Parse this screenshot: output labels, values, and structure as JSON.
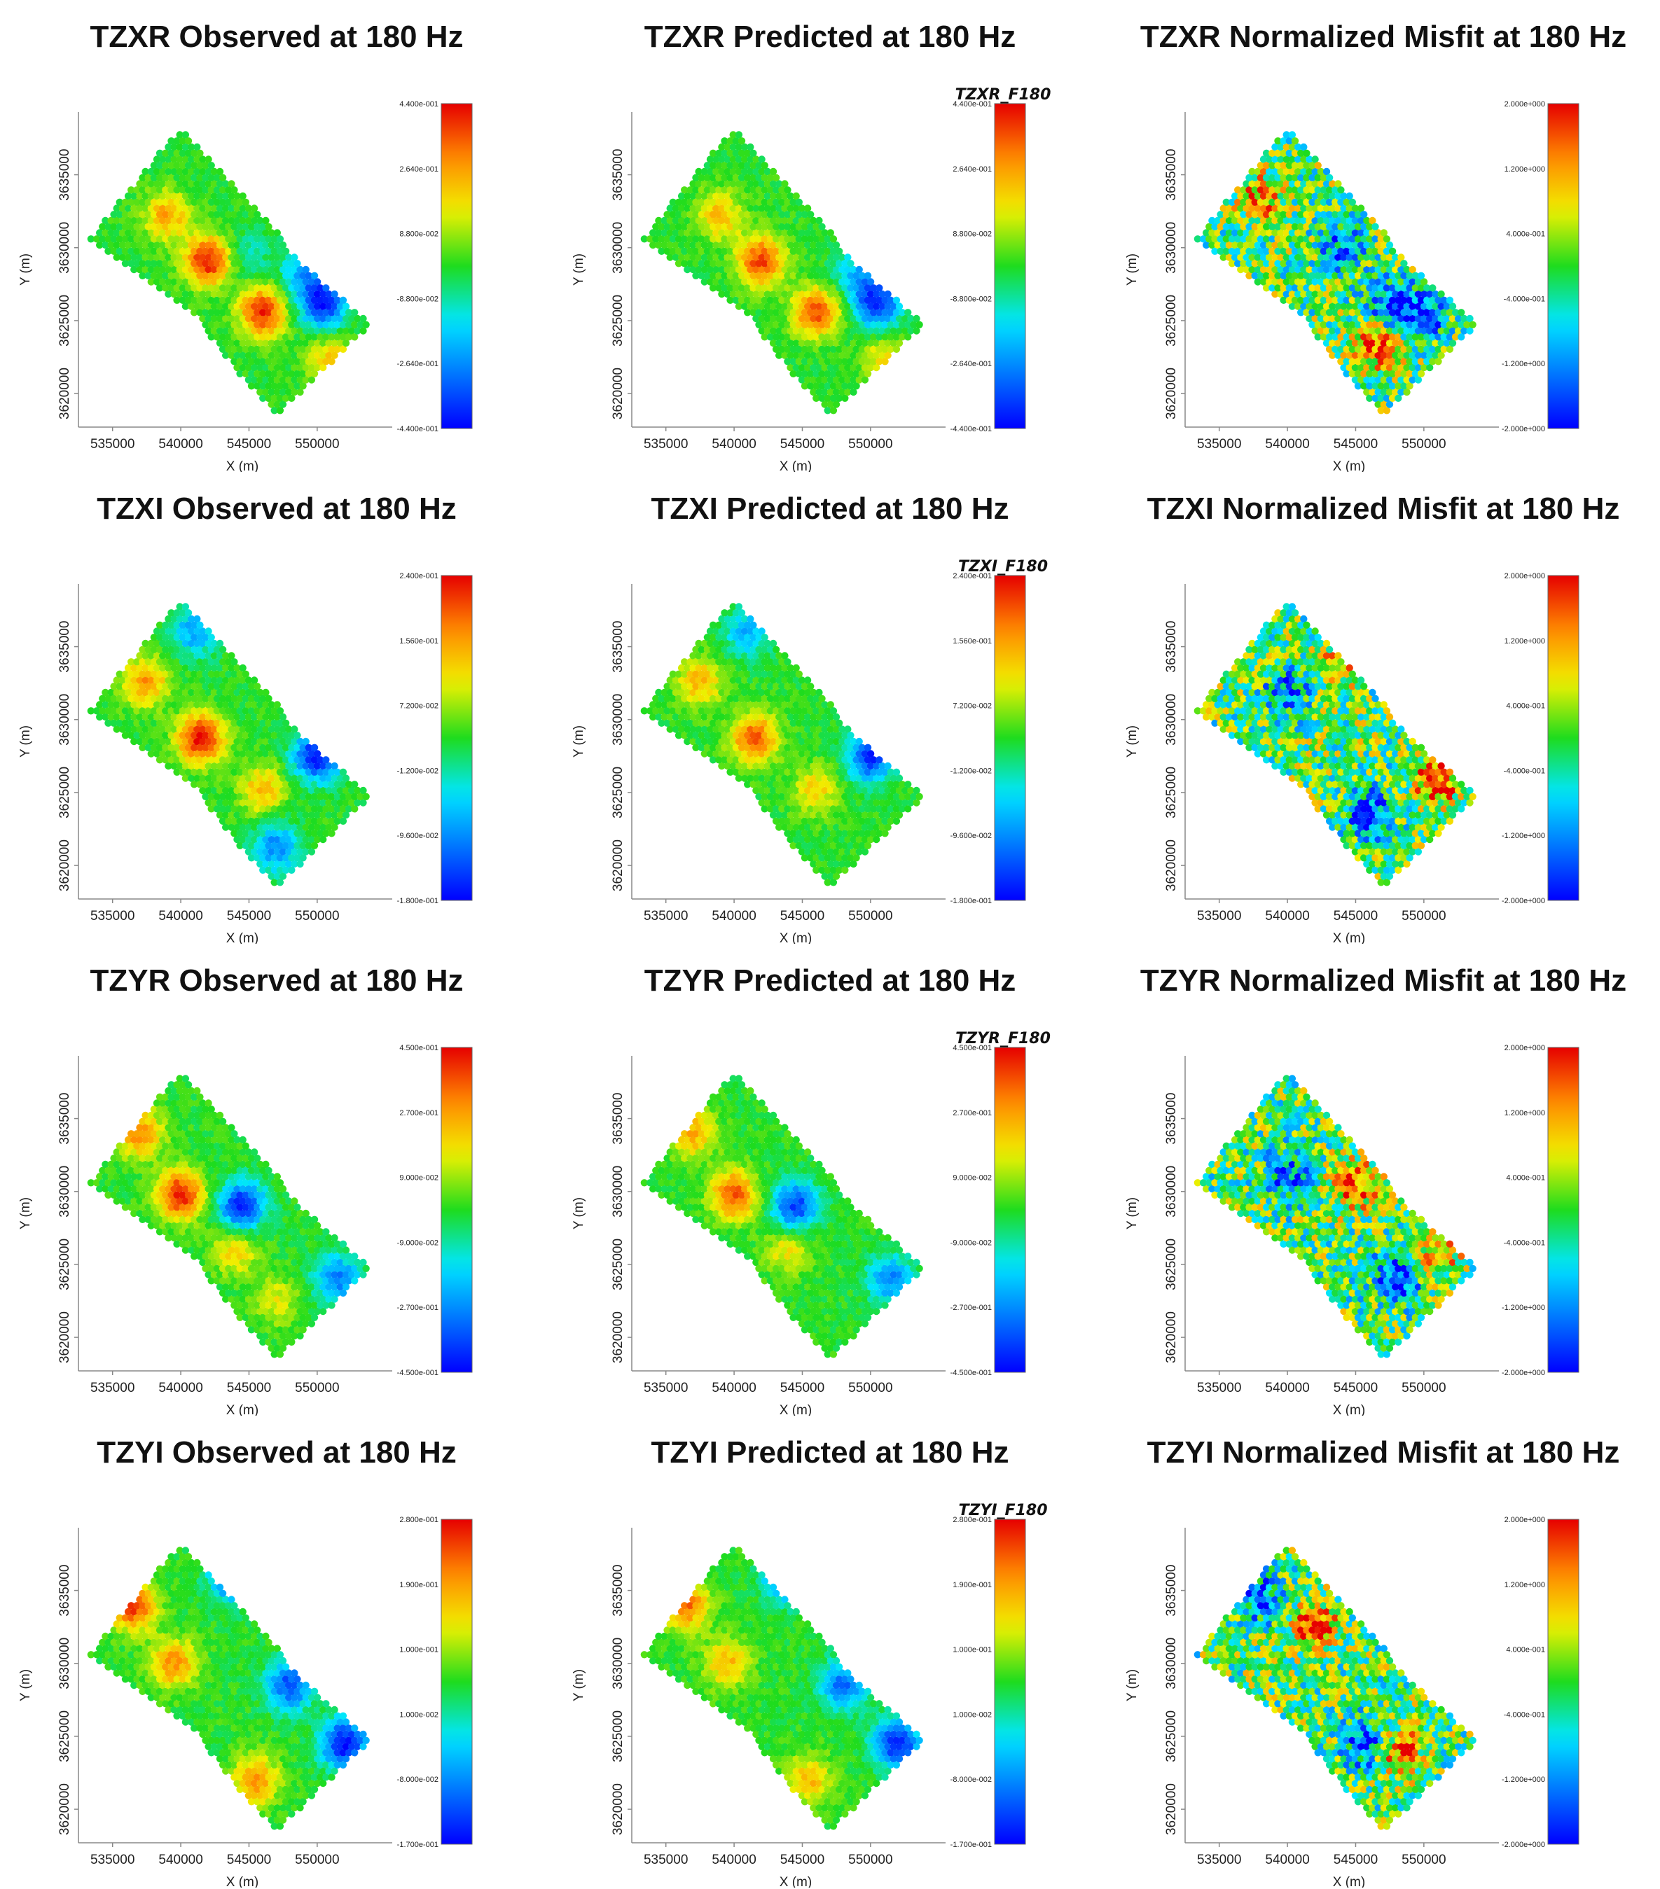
{
  "figure": {
    "columns": [
      "Observed",
      "Predicted",
      "Normalized Misfit"
    ],
    "rows": [
      "TZXR",
      "TZXI",
      "TZYR",
      "TZYI"
    ],
    "frequency": "180 Hz"
  },
  "chart_data": [
    {
      "type": "scatter",
      "component": "TZXR",
      "kind": "observed",
      "title": "TZXR Observed at 180 Hz",
      "xlabel": "X (m)",
      "ylabel": "Y (m)",
      "x_ticks": [
        "535000",
        "540000",
        "545000",
        "550000"
      ],
      "y_ticks": [
        "3620000",
        "3625000",
        "3630000",
        "3635000"
      ],
      "colorbar": {
        "ticks": [
          "4.400e-001",
          "2.640e-001",
          "8.800e-002",
          "-8.800e-002",
          "-2.640e-001",
          "-4.400e-001"
        ],
        "range": [
          -0.44,
          0.44
        ],
        "label": ""
      },
      "anomalies": [
        {
          "x": 539000,
          "y": 3632200,
          "value": 0.25
        },
        {
          "x": 542000,
          "y": 3629100,
          "value": 0.42
        },
        {
          "x": 546000,
          "y": 3625600,
          "value": 0.4
        },
        {
          "x": 550500,
          "y": 3626200,
          "value": -0.42
        },
        {
          "x": 549000,
          "y": 3628300,
          "value": -0.2
        },
        {
          "x": 551000,
          "y": 3622300,
          "value": 0.2
        },
        {
          "x": 545000,
          "y": 3629500,
          "value": -0.1
        }
      ]
    },
    {
      "type": "scatter",
      "component": "TZXR",
      "kind": "predicted",
      "title": "TZXR Predicted at 180 Hz",
      "xlabel": "X (m)",
      "ylabel": "Y (m)",
      "x_ticks": [
        "535000",
        "540000",
        "545000",
        "550000"
      ],
      "y_ticks": [
        "3620000",
        "3625000",
        "3630000",
        "3635000"
      ],
      "colorbar": {
        "ticks": [
          "4.400e-001",
          "2.640e-001",
          "8.800e-002",
          "-8.800e-002",
          "-2.640e-001",
          "-4.400e-001"
        ],
        "range": [
          -0.44,
          0.44
        ],
        "label": "TZXR_F180"
      },
      "anomalies": [
        {
          "x": 539000,
          "y": 3632200,
          "value": 0.22
        },
        {
          "x": 542000,
          "y": 3629100,
          "value": 0.38
        },
        {
          "x": 546000,
          "y": 3625600,
          "value": 0.36
        },
        {
          "x": 550500,
          "y": 3626200,
          "value": -0.4
        },
        {
          "x": 549000,
          "y": 3628300,
          "value": -0.18
        },
        {
          "x": 551000,
          "y": 3622300,
          "value": 0.18
        }
      ]
    },
    {
      "type": "scatter",
      "component": "TZXR",
      "kind": "misfit",
      "title": "TZXR Normalized Misfit at 180 Hz",
      "xlabel": "X (m)",
      "ylabel": "Y (m)",
      "x_ticks": [
        "535000",
        "540000",
        "545000",
        "550000"
      ],
      "y_ticks": [
        "3620000",
        "3625000",
        "3630000",
        "3635000"
      ],
      "colorbar": {
        "ticks": [
          "2.000e+000",
          "1.200e+000",
          "4.000e-001",
          "-4.000e-001",
          "-1.200e+000",
          "-2.000e+000"
        ],
        "range": [
          -2,
          2
        ],
        "label": ""
      },
      "anomalies": [
        {
          "x": 547500,
          "y": 3626000,
          "value": -1.8
        },
        {
          "x": 550000,
          "y": 3625500,
          "value": -1.6
        },
        {
          "x": 546500,
          "y": 3623500,
          "value": 1.7
        },
        {
          "x": 538000,
          "y": 3633500,
          "value": 1.2
        },
        {
          "x": 544000,
          "y": 3630000,
          "value": -1.2
        }
      ]
    },
    {
      "type": "scatter",
      "component": "TZXI",
      "kind": "observed",
      "title": "TZXI Observed at 180 Hz",
      "xlabel": "X (m)",
      "ylabel": "Y (m)",
      "x_ticks": [
        "535000",
        "540000",
        "545000",
        "550000"
      ],
      "y_ticks": [
        "3620000",
        "3625000",
        "3630000",
        "3635000"
      ],
      "colorbar": {
        "ticks": [
          "2.400e-001",
          "1.560e-001",
          "7.200e-002",
          "-1.200e-002",
          "-9.600e-002",
          "-1.800e-001"
        ],
        "range": [
          -0.18,
          0.24
        ],
        "label": ""
      },
      "anomalies": [
        {
          "x": 537500,
          "y": 3632600,
          "value": 0.16
        },
        {
          "x": 541500,
          "y": 3628700,
          "value": 0.24
        },
        {
          "x": 546000,
          "y": 3625200,
          "value": 0.14
        },
        {
          "x": 550000,
          "y": 3627500,
          "value": -0.18
        },
        {
          "x": 541000,
          "y": 3636000,
          "value": -0.08
        },
        {
          "x": 547000,
          "y": 3621200,
          "value": -0.1
        }
      ]
    },
    {
      "type": "scatter",
      "component": "TZXI",
      "kind": "predicted",
      "title": "TZXI Predicted at 180 Hz",
      "xlabel": "X (m)",
      "ylabel": "Y (m)",
      "x_ticks": [
        "535000",
        "540000",
        "545000",
        "550000"
      ],
      "y_ticks": [
        "3620000",
        "3625000",
        "3630000",
        "3635000"
      ],
      "colorbar": {
        "ticks": [
          "2.400e-001",
          "1.560e-001",
          "7.200e-002",
          "-1.200e-002",
          "-9.600e-002",
          "-1.800e-001"
        ],
        "range": [
          -0.18,
          0.24
        ],
        "label": "TZXI_F180"
      },
      "anomalies": [
        {
          "x": 537500,
          "y": 3632600,
          "value": 0.14
        },
        {
          "x": 541500,
          "y": 3628700,
          "value": 0.2
        },
        {
          "x": 546000,
          "y": 3625200,
          "value": 0.12
        },
        {
          "x": 550000,
          "y": 3627500,
          "value": -0.16
        },
        {
          "x": 541000,
          "y": 3636000,
          "value": -0.07
        }
      ]
    },
    {
      "type": "scatter",
      "component": "TZXI",
      "kind": "misfit",
      "title": "TZXI Normalized Misfit at 180 Hz",
      "xlabel": "X (m)",
      "ylabel": "Y (m)",
      "x_ticks": [
        "535000",
        "540000",
        "545000",
        "550000"
      ],
      "y_ticks": [
        "3620000",
        "3625000",
        "3630000",
        "3635000"
      ],
      "colorbar": {
        "ticks": [
          "2.000e+000",
          "1.200e+000",
          "4.000e-001",
          "-4.000e-001",
          "-1.200e+000",
          "-2.000e+000"
        ],
        "range": [
          -2,
          2
        ],
        "label": ""
      },
      "anomalies": [
        {
          "x": 546000,
          "y": 3623500,
          "value": -1.7
        },
        {
          "x": 551000,
          "y": 3625800,
          "value": 1.7
        },
        {
          "x": 540000,
          "y": 3632000,
          "value": -1.3
        },
        {
          "x": 544000,
          "y": 3634000,
          "value": 1.0
        }
      ]
    },
    {
      "type": "scatter",
      "component": "TZYR",
      "kind": "observed",
      "title": "TZYR Observed at 180 Hz",
      "xlabel": "X (m)",
      "ylabel": "Y (m)",
      "x_ticks": [
        "535000",
        "540000",
        "545000",
        "550000"
      ],
      "y_ticks": [
        "3620000",
        "3625000",
        "3630000",
        "3635000"
      ],
      "colorbar": {
        "ticks": [
          "4.500e-001",
          "2.700e-001",
          "9.000e-002",
          "-9.000e-002",
          "-2.700e-001",
          "-4.500e-001"
        ],
        "range": [
          -0.45,
          0.45
        ],
        "label": ""
      },
      "anomalies": [
        {
          "x": 540000,
          "y": 3629800,
          "value": 0.42
        },
        {
          "x": 537000,
          "y": 3634000,
          "value": 0.3
        },
        {
          "x": 544500,
          "y": 3629000,
          "value": -0.42
        },
        {
          "x": 544000,
          "y": 3626000,
          "value": 0.2
        },
        {
          "x": 551500,
          "y": 3624000,
          "value": -0.3
        },
        {
          "x": 547000,
          "y": 3622500,
          "value": 0.15
        }
      ]
    },
    {
      "type": "scatter",
      "component": "TZYR",
      "kind": "predicted",
      "title": "TZYR Predicted at 180 Hz",
      "xlabel": "X (m)",
      "ylabel": "Y (m)",
      "x_ticks": [
        "535000",
        "540000",
        "545000",
        "550000"
      ],
      "y_ticks": [
        "3620000",
        "3625000",
        "3630000",
        "3635000"
      ],
      "colorbar": {
        "ticks": [
          "4.500e-001",
          "2.700e-001",
          "9.000e-002",
          "-9.000e-002",
          "-2.700e-001",
          "-4.500e-001"
        ],
        "range": [
          -0.45,
          0.45
        ],
        "label": "TZYR_F180"
      },
      "anomalies": [
        {
          "x": 540000,
          "y": 3629800,
          "value": 0.36
        },
        {
          "x": 537000,
          "y": 3634000,
          "value": 0.25
        },
        {
          "x": 544500,
          "y": 3629000,
          "value": -0.38
        },
        {
          "x": 544000,
          "y": 3626000,
          "value": 0.18
        },
        {
          "x": 551500,
          "y": 3624000,
          "value": -0.28
        }
      ]
    },
    {
      "type": "scatter",
      "component": "TZYR",
      "kind": "misfit",
      "title": "TZYR Normalized Misfit at 180 Hz",
      "xlabel": "X (m)",
      "ylabel": "Y (m)",
      "x_ticks": [
        "535000",
        "540000",
        "545000",
        "550000"
      ],
      "y_ticks": [
        "3620000",
        "3625000",
        "3630000",
        "3635000"
      ],
      "colorbar": {
        "ticks": [
          "2.000e+000",
          "1.200e+000",
          "4.000e-001",
          "-4.000e-001",
          "-1.200e+000",
          "-2.000e+000"
        ],
        "range": [
          -2,
          2
        ],
        "label": ""
      },
      "anomalies": [
        {
          "x": 548000,
          "y": 3624000,
          "value": -1.9
        },
        {
          "x": 545000,
          "y": 3630500,
          "value": 1.6
        },
        {
          "x": 540000,
          "y": 3631000,
          "value": -1.4
        },
        {
          "x": 551000,
          "y": 3626000,
          "value": 1.3
        }
      ]
    },
    {
      "type": "scatter",
      "component": "TZYI",
      "kind": "observed",
      "title": "TZYI Observed at 180 Hz",
      "xlabel": "X (m)",
      "ylabel": "Y (m)",
      "x_ticks": [
        "535000",
        "540000",
        "545000",
        "550000"
      ],
      "y_ticks": [
        "3620000",
        "3625000",
        "3630000",
        "3635000"
      ],
      "colorbar": {
        "ticks": [
          "2.800e-001",
          "1.900e-001",
          "1.000e-001",
          "1.000e-002",
          "-8.000e-002",
          "-1.700e-001"
        ],
        "range": [
          -0.17,
          0.28
        ],
        "label": ""
      },
      "anomalies": [
        {
          "x": 536500,
          "y": 3634000,
          "value": 0.26
        },
        {
          "x": 539500,
          "y": 3630000,
          "value": 0.2
        },
        {
          "x": 544000,
          "y": 3636000,
          "value": -0.16
        },
        {
          "x": 552000,
          "y": 3624500,
          "value": -0.17
        },
        {
          "x": 548000,
          "y": 3628500,
          "value": -0.12
        },
        {
          "x": 545500,
          "y": 3622000,
          "value": 0.2
        }
      ]
    },
    {
      "type": "scatter",
      "component": "TZYI",
      "kind": "predicted",
      "title": "TZYI Predicted at 180 Hz",
      "xlabel": "X (m)",
      "ylabel": "Y (m)",
      "x_ticks": [
        "535000",
        "540000",
        "545000",
        "550000"
      ],
      "y_ticks": [
        "3620000",
        "3625000",
        "3630000",
        "3635000"
      ],
      "colorbar": {
        "ticks": [
          "2.800e-001",
          "1.900e-001",
          "1.000e-001",
          "1.000e-002",
          "-8.000e-002",
          "-1.700e-001"
        ],
        "range": [
          -0.17,
          0.28
        ],
        "label": "TZYI_F180"
      },
      "anomalies": [
        {
          "x": 536500,
          "y": 3634000,
          "value": 0.22
        },
        {
          "x": 539500,
          "y": 3630000,
          "value": 0.17
        },
        {
          "x": 544000,
          "y": 3636000,
          "value": -0.14
        },
        {
          "x": 552000,
          "y": 3624500,
          "value": -0.16
        },
        {
          "x": 548000,
          "y": 3628500,
          "value": -0.1
        },
        {
          "x": 545500,
          "y": 3622000,
          "value": 0.17
        }
      ]
    },
    {
      "type": "scatter",
      "component": "TZYI",
      "kind": "misfit",
      "title": "TZYI Normalized Misfit at 180 Hz",
      "xlabel": "X (m)",
      "ylabel": "Y (m)",
      "x_ticks": [
        "535000",
        "540000",
        "545000",
        "550000"
      ],
      "y_ticks": [
        "3620000",
        "3625000",
        "3630000",
        "3635000"
      ],
      "colorbar": {
        "ticks": [
          "2.000e+000",
          "1.200e+000",
          "4.000e-001",
          "-4.000e-001",
          "-1.200e+000",
          "-2.000e+000"
        ],
        "range": [
          -2,
          2
        ],
        "label": ""
      },
      "anomalies": [
        {
          "x": 546000,
          "y": 3624500,
          "value": -1.9
        },
        {
          "x": 548000,
          "y": 3624000,
          "value": 1.7
        },
        {
          "x": 542000,
          "y": 3632500,
          "value": 1.6
        },
        {
          "x": 538000,
          "y": 3634500,
          "value": -1.4
        }
      ]
    }
  ]
}
